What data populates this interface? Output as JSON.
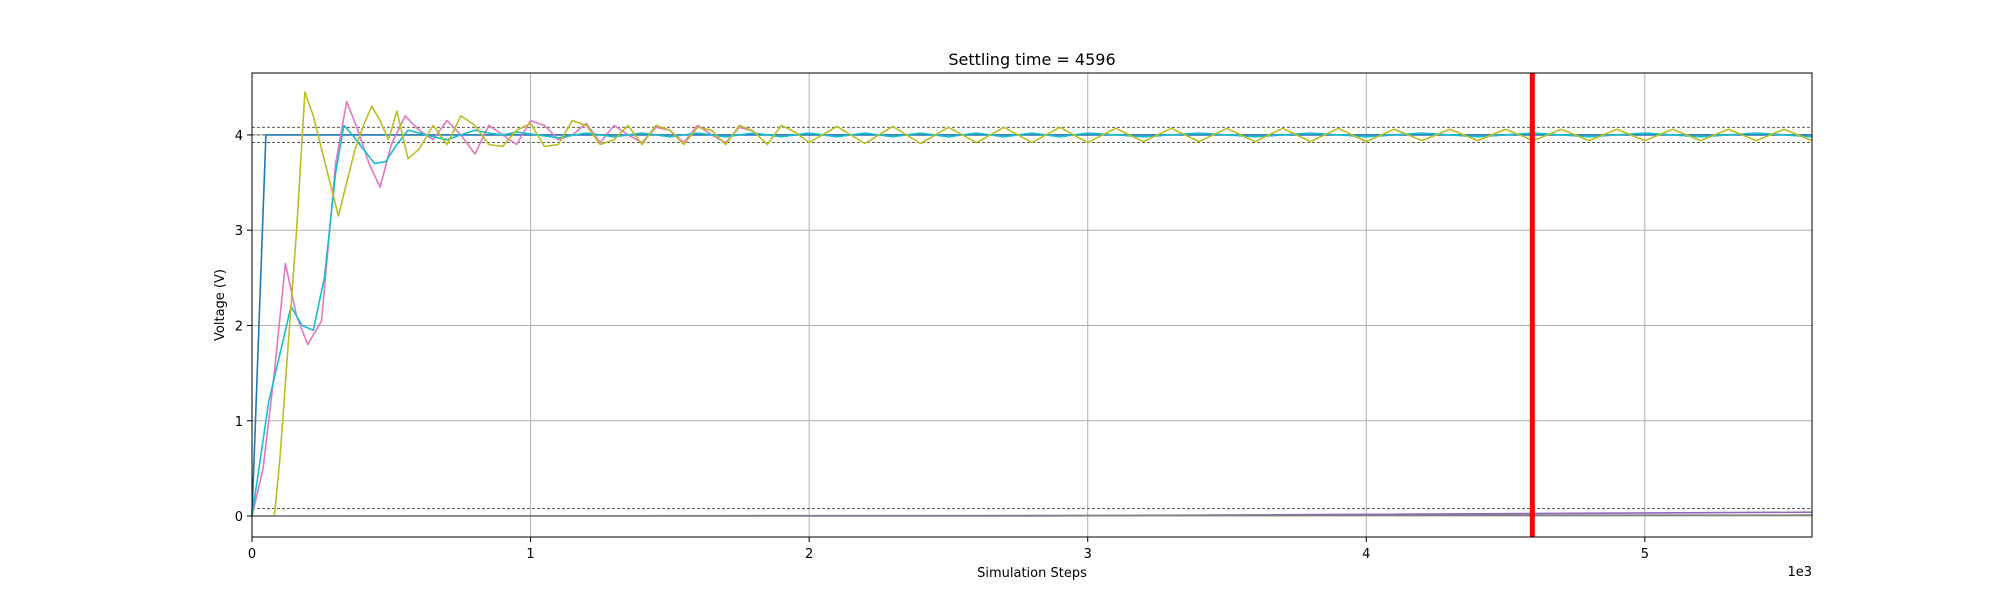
{
  "chart_data": {
    "type": "line",
    "title": "Settling time = 4596",
    "xlabel": "Simulation Steps",
    "ylabel": "Voltage (V)",
    "x_offset_label": "1e3",
    "xlim": [
      0,
      5600
    ],
    "ylim": [
      -0.22,
      4.65
    ],
    "xticks": [
      0,
      1000,
      2000,
      3000,
      4000,
      5000
    ],
    "xtick_labels": [
      "0",
      "1",
      "2",
      "3",
      "4",
      "5"
    ],
    "yticks": [
      0,
      1,
      2,
      3,
      4
    ],
    "ytick_labels": [
      "0",
      "1",
      "2",
      "3",
      "4"
    ],
    "grid": true,
    "settling_marker": {
      "x": 4596,
      "color": "#ff0000"
    },
    "reference_lines": [
      4.08,
      4.0,
      3.92,
      0.08
    ],
    "series": [
      {
        "color": "#1f77b4",
        "points": [
          [
            0,
            0
          ],
          [
            50,
            4.0
          ],
          [
            5600,
            4.0
          ]
        ]
      },
      {
        "color": "#e377c2",
        "points": [
          [
            0,
            0
          ],
          [
            40,
            0.5
          ],
          [
            80,
            1.5
          ],
          [
            120,
            2.65
          ],
          [
            160,
            2.1
          ],
          [
            200,
            1.8
          ],
          [
            250,
            2.05
          ],
          [
            300,
            3.7
          ],
          [
            340,
            4.35
          ],
          [
            380,
            4.05
          ],
          [
            420,
            3.7
          ],
          [
            460,
            3.45
          ],
          [
            500,
            3.9
          ],
          [
            550,
            4.2
          ],
          [
            600,
            4.05
          ],
          [
            650,
            3.95
          ],
          [
            700,
            4.15
          ],
          [
            750,
            4.0
          ],
          [
            800,
            3.8
          ],
          [
            850,
            4.1
          ],
          [
            900,
            4.0
          ],
          [
            950,
            3.9
          ],
          [
            1000,
            4.15
          ],
          [
            1050,
            4.1
          ],
          [
            1100,
            3.95
          ],
          [
            1150,
            4.0
          ],
          [
            1200,
            4.12
          ],
          [
            1250,
            3.92
          ],
          [
            1300,
            4.1
          ],
          [
            1350,
            4.0
          ],
          [
            1400,
            3.92
          ],
          [
            1450,
            4.08
          ],
          [
            1500,
            4.05
          ],
          [
            1550,
            3.92
          ],
          [
            1600,
            4.1
          ],
          [
            1650,
            4.0
          ],
          [
            1700,
            3.92
          ],
          [
            1750,
            4.08
          ],
          [
            1800,
            4.04
          ]
        ]
      },
      {
        "color": "#17becf",
        "points": [
          [
            0,
            0
          ],
          [
            60,
            1.2
          ],
          [
            100,
            1.7
          ],
          [
            140,
            2.2
          ],
          [
            180,
            2.0
          ],
          [
            220,
            1.95
          ],
          [
            260,
            2.5
          ],
          [
            300,
            3.6
          ],
          [
            330,
            4.1
          ],
          [
            360,
            4.0
          ],
          [
            400,
            3.85
          ],
          [
            440,
            3.7
          ],
          [
            480,
            3.72
          ],
          [
            520,
            3.9
          ],
          [
            560,
            4.05
          ],
          [
            600,
            4.02
          ],
          [
            650,
            3.98
          ],
          [
            700,
            3.95
          ],
          [
            750,
            4.0
          ],
          [
            800,
            4.05
          ],
          [
            850,
            4.02
          ],
          [
            900,
            4.0
          ],
          [
            950,
            4.03
          ],
          [
            1000,
            4.01
          ],
          [
            1100,
            3.97
          ],
          [
            1200,
            4.02
          ],
          [
            1300,
            3.98
          ],
          [
            1400,
            4.02
          ],
          [
            1500,
            3.98
          ],
          [
            1600,
            4.02
          ],
          [
            1700,
            3.98
          ],
          [
            1800,
            4.02
          ],
          [
            1900,
            3.98
          ],
          [
            2000,
            4.02
          ],
          [
            2100,
            3.98
          ],
          [
            2200,
            4.02
          ],
          [
            2300,
            3.98
          ],
          [
            2400,
            4.02
          ],
          [
            2500,
            3.98
          ],
          [
            2600,
            4.02
          ],
          [
            2700,
            3.98
          ],
          [
            2800,
            4.02
          ],
          [
            2900,
            3.98
          ],
          [
            3000,
            4.02
          ],
          [
            3200,
            3.98
          ],
          [
            3400,
            4.02
          ],
          [
            3600,
            3.98
          ],
          [
            3800,
            4.02
          ],
          [
            4000,
            3.98
          ],
          [
            4200,
            4.02
          ],
          [
            4400,
            3.98
          ],
          [
            4600,
            4.02
          ],
          [
            4800,
            3.98
          ],
          [
            5000,
            4.02
          ],
          [
            5200,
            3.98
          ],
          [
            5400,
            4.02
          ],
          [
            5600,
            3.98
          ]
        ]
      },
      {
        "color": "#bcbd22",
        "points": [
          [
            0,
            0
          ],
          [
            80,
            0
          ],
          [
            100,
            0.6
          ],
          [
            130,
            1.8
          ],
          [
            160,
            3.0
          ],
          [
            190,
            4.45
          ],
          [
            220,
            4.2
          ],
          [
            250,
            3.85
          ],
          [
            280,
            3.5
          ],
          [
            310,
            3.15
          ],
          [
            340,
            3.5
          ],
          [
            370,
            3.85
          ],
          [
            400,
            4.1
          ],
          [
            430,
            4.3
          ],
          [
            460,
            4.15
          ],
          [
            490,
            3.95
          ],
          [
            520,
            4.25
          ],
          [
            560,
            3.75
          ],
          [
            600,
            3.85
          ],
          [
            650,
            4.1
          ],
          [
            700,
            3.9
          ],
          [
            750,
            4.2
          ],
          [
            800,
            4.1
          ],
          [
            850,
            3.9
          ],
          [
            900,
            3.88
          ],
          [
            950,
            4.05
          ],
          [
            1000,
            4.12
          ],
          [
            1050,
            3.88
          ],
          [
            1100,
            3.9
          ],
          [
            1150,
            4.15
          ],
          [
            1200,
            4.1
          ],
          [
            1250,
            3.9
          ],
          [
            1300,
            3.95
          ],
          [
            1350,
            4.1
          ],
          [
            1400,
            3.9
          ],
          [
            1450,
            4.1
          ],
          [
            1500,
            4.05
          ],
          [
            1550,
            3.9
          ],
          [
            1600,
            4.08
          ],
          [
            1650,
            4.05
          ],
          [
            1700,
            3.9
          ],
          [
            1750,
            4.1
          ],
          [
            1800,
            4.04
          ],
          [
            1850,
            3.9
          ],
          [
            1900,
            4.1
          ],
          [
            1950,
            4.03
          ],
          [
            2000,
            3.92
          ],
          [
            2100,
            4.09
          ],
          [
            2200,
            3.91
          ],
          [
            2300,
            4.09
          ],
          [
            2400,
            3.91
          ],
          [
            2500,
            4.08
          ],
          [
            2600,
            3.92
          ],
          [
            2700,
            4.08
          ],
          [
            2800,
            3.92
          ],
          [
            2900,
            4.08
          ],
          [
            3000,
            3.92
          ],
          [
            3100,
            4.07
          ],
          [
            3200,
            3.93
          ],
          [
            3300,
            4.07
          ],
          [
            3400,
            3.93
          ],
          [
            3500,
            4.07
          ],
          [
            3600,
            3.93
          ],
          [
            3700,
            4.07
          ],
          [
            3800,
            3.93
          ],
          [
            3900,
            4.07
          ],
          [
            4000,
            3.93
          ],
          [
            4100,
            4.06
          ],
          [
            4200,
            3.94
          ],
          [
            4300,
            4.06
          ],
          [
            4400,
            3.94
          ],
          [
            4500,
            4.06
          ],
          [
            4600,
            3.94
          ],
          [
            4700,
            4.06
          ],
          [
            4800,
            3.94
          ],
          [
            4900,
            4.06
          ],
          [
            5000,
            3.94
          ],
          [
            5100,
            4.06
          ],
          [
            5200,
            3.94
          ],
          [
            5300,
            4.06
          ],
          [
            5400,
            3.94
          ],
          [
            5500,
            4.06
          ],
          [
            5600,
            3.94
          ]
        ]
      },
      {
        "color": "#9467bd",
        "points": [
          [
            0,
            0
          ],
          [
            2800,
            0.0
          ],
          [
            5600,
            0.04
          ]
        ]
      },
      {
        "color": "#7f7f7f",
        "points": [
          [
            0,
            0
          ],
          [
            5600,
            0.01
          ]
        ]
      }
    ]
  }
}
